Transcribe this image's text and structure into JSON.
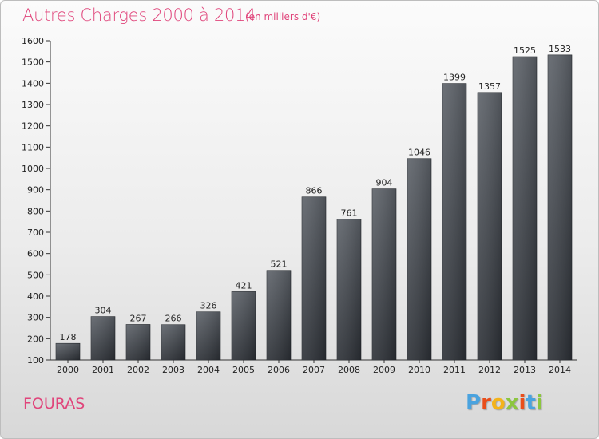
{
  "header": {
    "title": "Autres Charges 2000 à 2014",
    "subtitle": "(en milliers d'€)"
  },
  "footer": {
    "town": "FOURAS",
    "logo": "Proxiti",
    "logo_colors": [
      "#4aa3df",
      "#e94e1b",
      "#f3b31b",
      "#8cc63f",
      "#e94e1b",
      "#4aa3df",
      "#8cc63f"
    ]
  },
  "colors": {
    "accent": "#e0457b",
    "bar_top": "#5c6168",
    "bar_bottom": "#2b2f35"
  },
  "chart_data": {
    "type": "bar",
    "title": "Autres Charges 2000 à 2014",
    "subtitle": "(en milliers d'€)",
    "categories": [
      "2000",
      "2001",
      "2002",
      "2003",
      "2004",
      "2005",
      "2006",
      "2007",
      "2008",
      "2009",
      "2010",
      "2011",
      "2012",
      "2013",
      "2014"
    ],
    "values": [
      178,
      304,
      267,
      266,
      326,
      421,
      521,
      866,
      761,
      904,
      1046,
      1399,
      1357,
      1525,
      1533
    ],
    "ylim": [
      100,
      1600
    ],
    "yticks": [
      100,
      200,
      300,
      400,
      500,
      600,
      700,
      800,
      900,
      1000,
      1100,
      1200,
      1300,
      1400,
      1500,
      1600
    ],
    "grid": false,
    "data_labels": true
  }
}
